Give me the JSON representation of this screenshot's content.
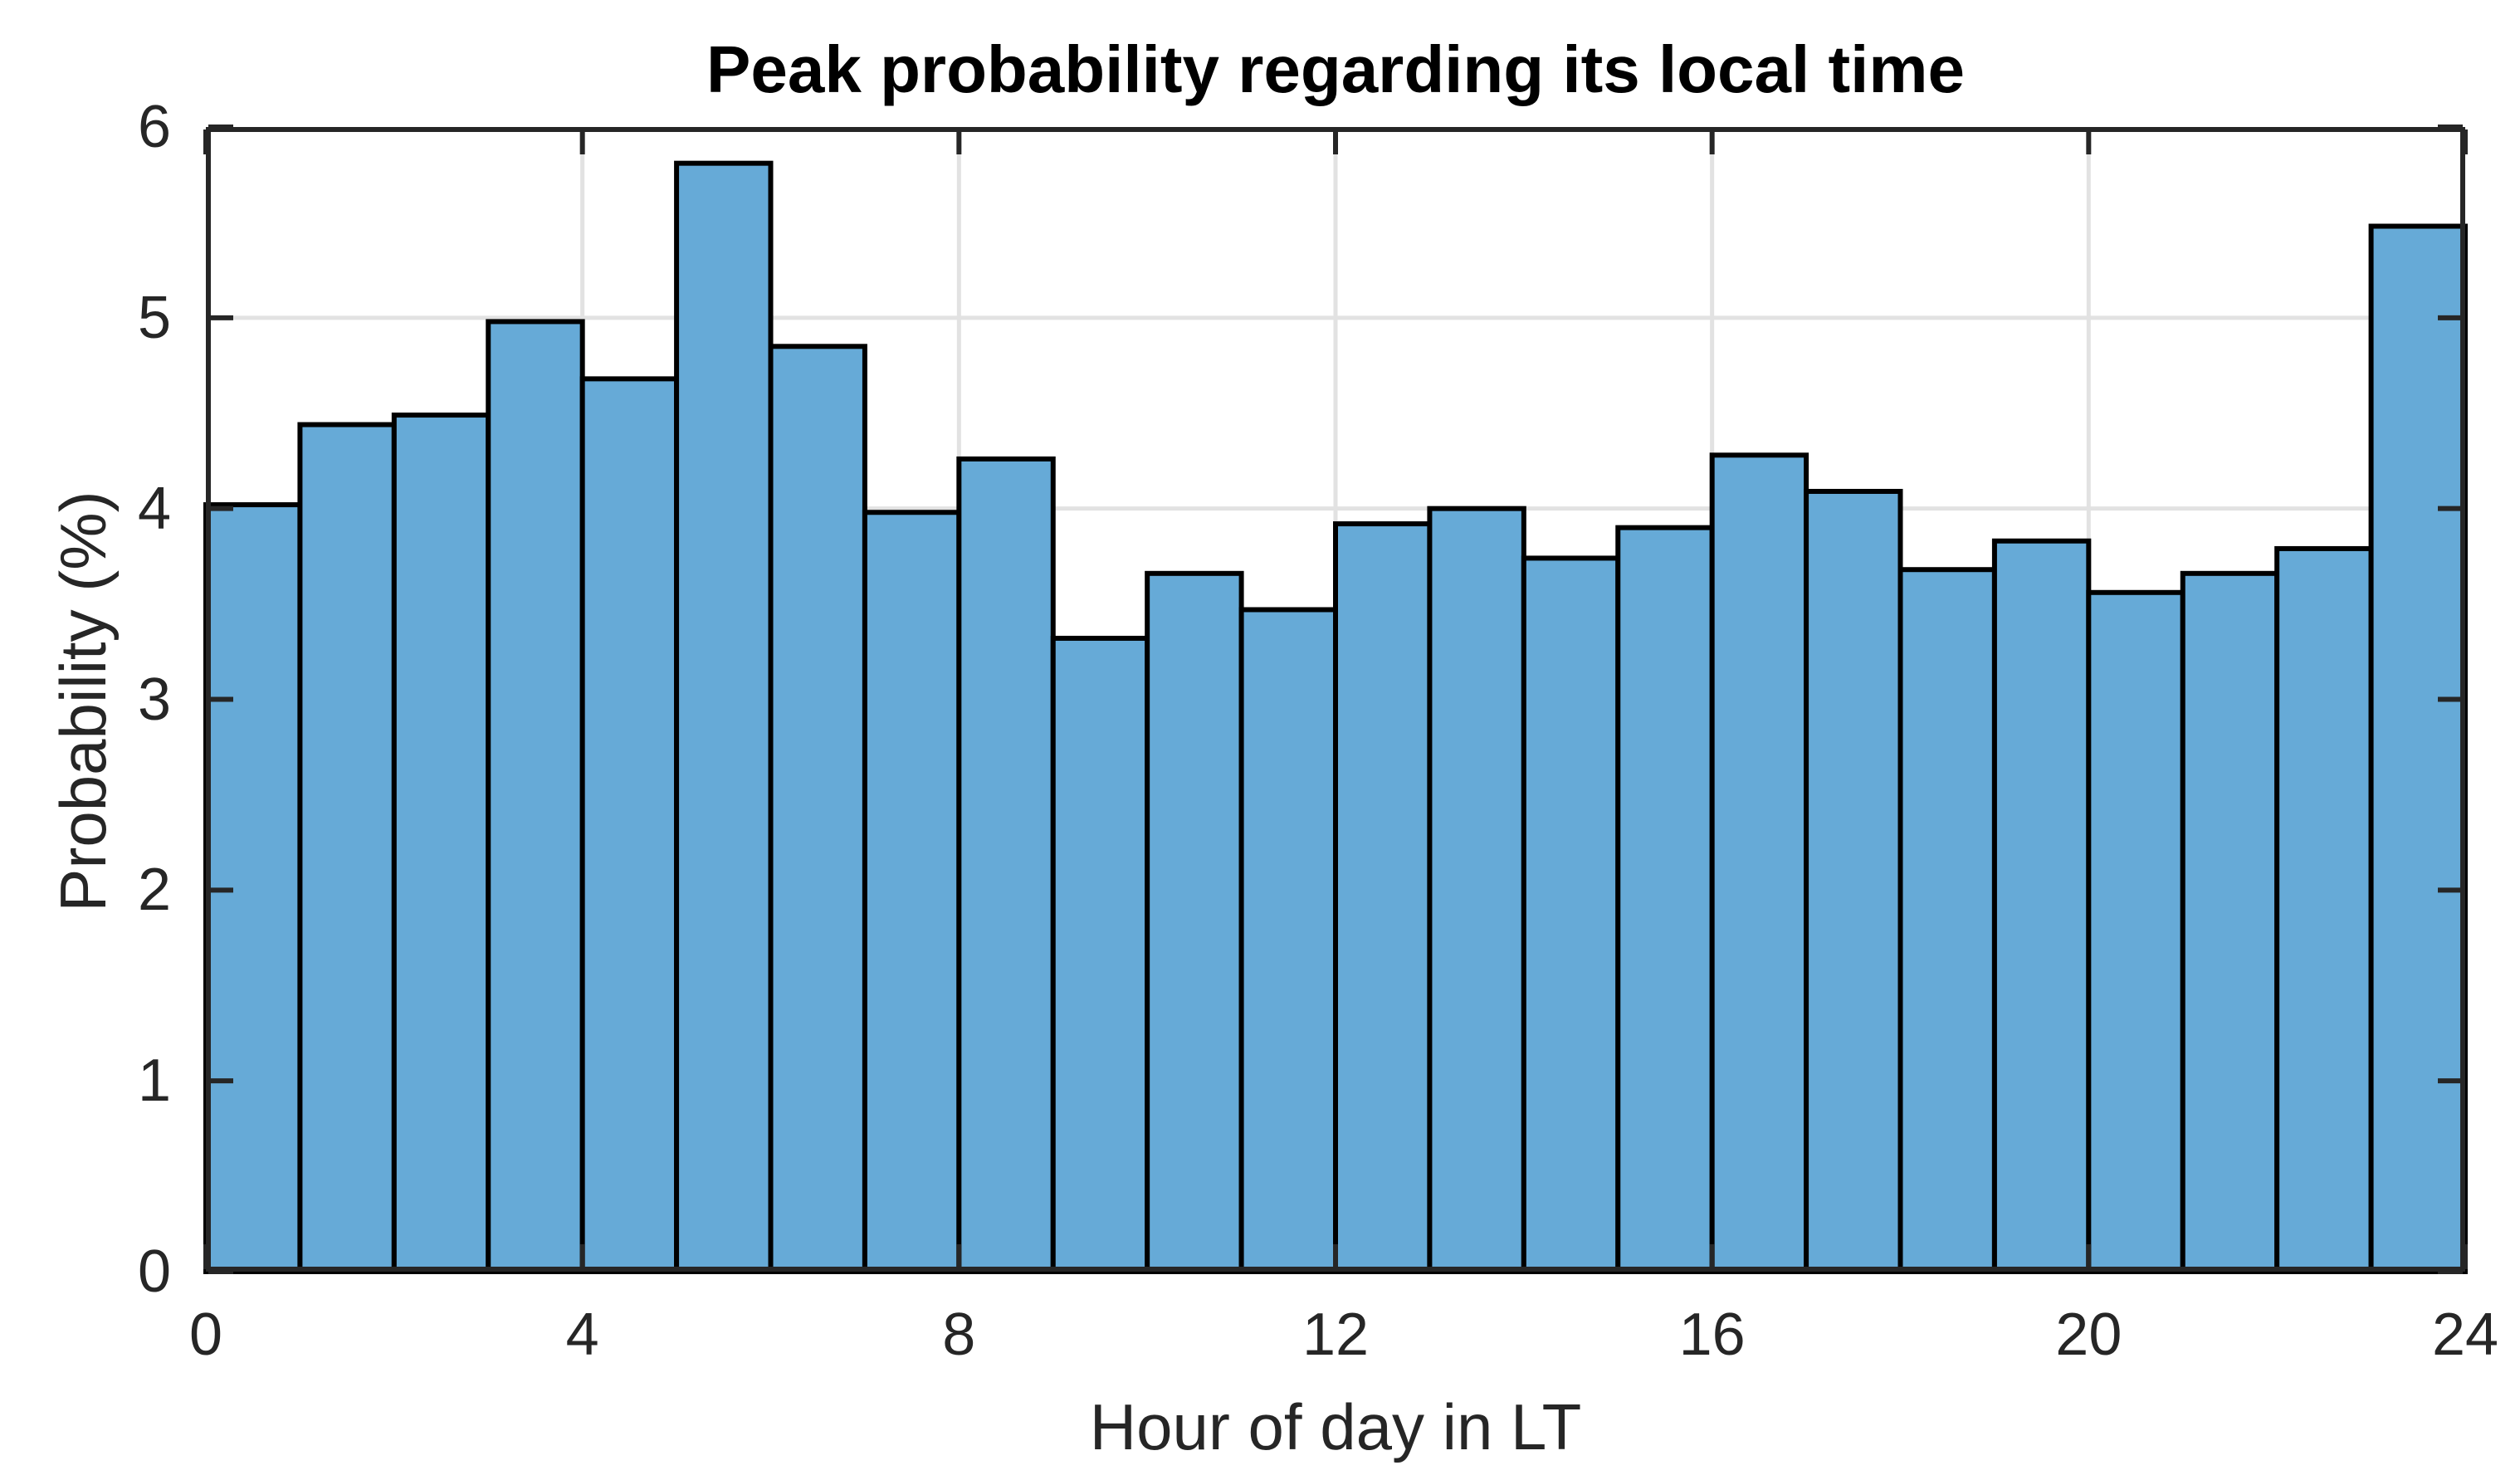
{
  "chart_data": {
    "type": "bar",
    "subtype": "histogram",
    "title": "Peak probability regarding its local time",
    "xlabel": "Hour of day in LT",
    "ylabel": "Probability (%)",
    "xlim": [
      0,
      24
    ],
    "ylim": [
      0,
      6
    ],
    "x_ticks": [
      0,
      4,
      8,
      12,
      16,
      20,
      24
    ],
    "y_ticks": [
      0,
      1,
      2,
      3,
      4,
      5,
      6
    ],
    "grid": true,
    "legend": "none",
    "bin_width_hours": 1,
    "categories": [
      0,
      1,
      2,
      3,
      4,
      5,
      6,
      7,
      8,
      9,
      10,
      11,
      12,
      13,
      14,
      15,
      16,
      17,
      18,
      19,
      20,
      21,
      22,
      23
    ],
    "values": [
      4.02,
      4.44,
      4.49,
      4.98,
      4.68,
      5.81,
      4.85,
      3.98,
      4.26,
      3.32,
      3.66,
      3.47,
      3.92,
      4.0,
      3.74,
      3.9,
      4.28,
      4.09,
      3.68,
      3.83,
      3.56,
      3.66,
      3.79,
      5.48
    ],
    "colors": {
      "bar_fill": "#66AAD7",
      "bar_edge": "#000000",
      "gridline": "#E2E2E2",
      "axis_box": "#262626",
      "tick_text": "#262626",
      "title_text": "#000000"
    }
  }
}
